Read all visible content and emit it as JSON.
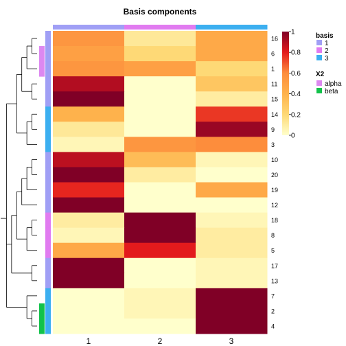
{
  "chart_data": {
    "type": "heatmap",
    "title": "Basis components",
    "columns": [
      "1",
      "2",
      "3"
    ],
    "rows": [
      "16",
      "6",
      "1",
      "11",
      "15",
      "14",
      "9",
      "3",
      "10",
      "20",
      "19",
      "12",
      "18",
      "8",
      "5",
      "17",
      "13",
      "7",
      "2",
      "4"
    ],
    "values": [
      [
        0.55,
        0.12,
        0.45
      ],
      [
        0.5,
        0.2,
        0.45
      ],
      [
        0.55,
        0.5,
        0.2
      ],
      [
        0.9,
        0.0,
        0.3
      ],
      [
        1.0,
        0.0,
        0.1
      ],
      [
        0.4,
        0.0,
        0.75
      ],
      [
        0.12,
        0.0,
        0.95
      ],
      [
        0.05,
        0.55,
        0.6
      ],
      [
        0.88,
        0.35,
        0.05
      ],
      [
        1.0,
        0.1,
        0.0
      ],
      [
        0.78,
        0.0,
        0.45
      ],
      [
        1.0,
        0.0,
        0.0
      ],
      [
        0.1,
        1.0,
        0.05
      ],
      [
        0.05,
        1.0,
        0.1
      ],
      [
        0.45,
        0.8,
        0.1
      ],
      [
        1.0,
        0.0,
        0.05
      ],
      [
        1.0,
        0.0,
        0.05
      ],
      [
        0.0,
        0.05,
        1.0
      ],
      [
        0.0,
        0.05,
        1.0
      ],
      [
        0.0,
        0.0,
        1.0
      ]
    ],
    "row_basis": [
      "1",
      "1",
      "1",
      "1",
      "1",
      "3",
      "3",
      "3",
      "1",
      "1",
      "1",
      "1",
      "2",
      "2",
      "2",
      "1",
      "1",
      "3",
      "3",
      "3"
    ],
    "column_basis": [
      "1",
      "2",
      "3"
    ],
    "row_x2_annotations": [
      {
        "label": "alpha",
        "rows": [
          "6",
          "1"
        ]
      },
      {
        "label": "beta",
        "rows": [
          "2",
          "4"
        ]
      }
    ],
    "colorbar": {
      "min": 0,
      "max": 1,
      "ticks": [
        "1",
        "0.8",
        "0.6",
        "0.4",
        "0.2",
        "0"
      ]
    },
    "legend_basis": {
      "title": "basis",
      "items": [
        {
          "label": "1",
          "color": "#a09ff5"
        },
        {
          "label": "2",
          "color": "#e17bf0"
        },
        {
          "label": "3",
          "color": "#3caff0"
        }
      ]
    },
    "legend_x2": {
      "title": "X2",
      "items": [
        {
          "label": "alpha",
          "color": "#dd88f0"
        },
        {
          "label": "beta",
          "color": "#12c24a"
        }
      ]
    },
    "color_scale": [
      "#ffffcc",
      "#fed976",
      "#feb24c",
      "#fd8d3c",
      "#e31a1c",
      "#800026"
    ]
  }
}
